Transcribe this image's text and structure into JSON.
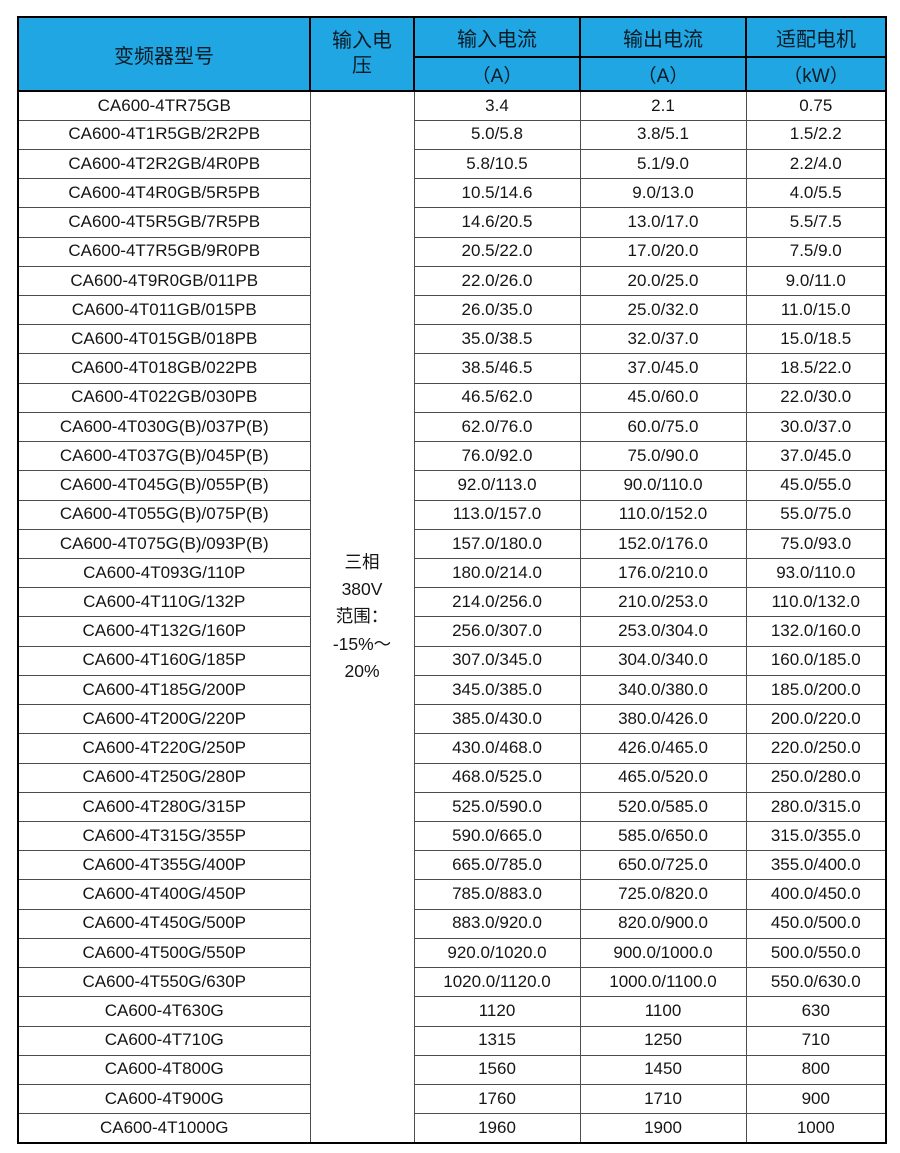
{
  "colors": {
    "header_bg": "#1FA6E3",
    "header_text": "#0d1b24",
    "body_text": "#151515",
    "outer_border": "#000000",
    "grid_line": "#4d4d4d"
  },
  "header": {
    "model": "变频器型号",
    "voltage": "输入电压",
    "input_current": "输入电流",
    "output_current": "输出电流",
    "motor": "适配电机",
    "input_current_unit": "（A）",
    "output_current_unit": "（A）",
    "motor_unit": "（kW）"
  },
  "voltage_note": "三相\n380V\n范围：\n-15%～\n20%",
  "rows": [
    {
      "model": "CA600-4TR75GB",
      "input_current": "3.4",
      "output_current": "2.1",
      "motor_kw": "0.75"
    },
    {
      "model": "CA600-4T1R5GB/2R2PB",
      "input_current": "5.0/5.8",
      "output_current": "3.8/5.1",
      "motor_kw": "1.5/2.2"
    },
    {
      "model": "CA600-4T2R2GB/4R0PB",
      "input_current": "5.8/10.5",
      "output_current": "5.1/9.0",
      "motor_kw": "2.2/4.0"
    },
    {
      "model": "CA600-4T4R0GB/5R5PB",
      "input_current": "10.5/14.6",
      "output_current": "9.0/13.0",
      "motor_kw": "4.0/5.5"
    },
    {
      "model": "CA600-4T5R5GB/7R5PB",
      "input_current": "14.6/20.5",
      "output_current": "13.0/17.0",
      "motor_kw": "5.5/7.5"
    },
    {
      "model": "CA600-4T7R5GB/9R0PB",
      "input_current": "20.5/22.0",
      "output_current": "17.0/20.0",
      "motor_kw": "7.5/9.0"
    },
    {
      "model": "CA600-4T9R0GB/011PB",
      "input_current": "22.0/26.0",
      "output_current": "20.0/25.0",
      "motor_kw": "9.0/11.0"
    },
    {
      "model": "CA600-4T011GB/015PB",
      "input_current": "26.0/35.0",
      "output_current": "25.0/32.0",
      "motor_kw": "11.0/15.0"
    },
    {
      "model": "CA600-4T015GB/018PB",
      "input_current": "35.0/38.5",
      "output_current": "32.0/37.0",
      "motor_kw": "15.0/18.5"
    },
    {
      "model": "CA600-4T018GB/022PB",
      "input_current": "38.5/46.5",
      "output_current": "37.0/45.0",
      "motor_kw": "18.5/22.0"
    },
    {
      "model": "CA600-4T022GB/030PB",
      "input_current": "46.5/62.0",
      "output_current": "45.0/60.0",
      "motor_kw": "22.0/30.0"
    },
    {
      "model": "CA600-4T030G(B)/037P(B)",
      "input_current": "62.0/76.0",
      "output_current": "60.0/75.0",
      "motor_kw": "30.0/37.0"
    },
    {
      "model": "CA600-4T037G(B)/045P(B)",
      "input_current": "76.0/92.0",
      "output_current": "75.0/90.0",
      "motor_kw": "37.0/45.0"
    },
    {
      "model": "CA600-4T045G(B)/055P(B)",
      "input_current": "92.0/113.0",
      "output_current": "90.0/110.0",
      "motor_kw": "45.0/55.0"
    },
    {
      "model": "CA600-4T055G(B)/075P(B)",
      "input_current": "113.0/157.0",
      "output_current": "110.0/152.0",
      "motor_kw": "55.0/75.0"
    },
    {
      "model": "CA600-4T075G(B)/093P(B)",
      "input_current": "157.0/180.0",
      "output_current": "152.0/176.0",
      "motor_kw": "75.0/93.0"
    },
    {
      "model": "CA600-4T093G/110P",
      "input_current": "180.0/214.0",
      "output_current": "176.0/210.0",
      "motor_kw": "93.0/110.0"
    },
    {
      "model": "CA600-4T110G/132P",
      "input_current": "214.0/256.0",
      "output_current": "210.0/253.0",
      "motor_kw": "110.0/132.0"
    },
    {
      "model": "CA600-4T132G/160P",
      "input_current": "256.0/307.0",
      "output_current": "253.0/304.0",
      "motor_kw": "132.0/160.0"
    },
    {
      "model": "CA600-4T160G/185P",
      "input_current": "307.0/345.0",
      "output_current": "304.0/340.0",
      "motor_kw": "160.0/185.0"
    },
    {
      "model": "CA600-4T185G/200P",
      "input_current": "345.0/385.0",
      "output_current": "340.0/380.0",
      "motor_kw": "185.0/200.0"
    },
    {
      "model": "CA600-4T200G/220P",
      "input_current": "385.0/430.0",
      "output_current": "380.0/426.0",
      "motor_kw": "200.0/220.0"
    },
    {
      "model": "CA600-4T220G/250P",
      "input_current": "430.0/468.0",
      "output_current": "426.0/465.0",
      "motor_kw": "220.0/250.0"
    },
    {
      "model": "CA600-4T250G/280P",
      "input_current": "468.0/525.0",
      "output_current": "465.0/520.0",
      "motor_kw": "250.0/280.0"
    },
    {
      "model": "CA600-4T280G/315P",
      "input_current": "525.0/590.0",
      "output_current": "520.0/585.0",
      "motor_kw": "280.0/315.0"
    },
    {
      "model": "CA600-4T315G/355P",
      "input_current": "590.0/665.0",
      "output_current": "585.0/650.0",
      "motor_kw": "315.0/355.0"
    },
    {
      "model": "CA600-4T355G/400P",
      "input_current": "665.0/785.0",
      "output_current": "650.0/725.0",
      "motor_kw": "355.0/400.0"
    },
    {
      "model": "CA600-4T400G/450P",
      "input_current": "785.0/883.0",
      "output_current": "725.0/820.0",
      "motor_kw": "400.0/450.0"
    },
    {
      "model": "CA600-4T450G/500P",
      "input_current": "883.0/920.0",
      "output_current": "820.0/900.0",
      "motor_kw": "450.0/500.0"
    },
    {
      "model": "CA600-4T500G/550P",
      "input_current": "920.0/1020.0",
      "output_current": "900.0/1000.0",
      "motor_kw": "500.0/550.0"
    },
    {
      "model": "CA600-4T550G/630P",
      "input_current": "1020.0/1120.0",
      "output_current": "1000.0/1100.0",
      "motor_kw": "550.0/630.0"
    },
    {
      "model": "CA600-4T630G",
      "input_current": "1120",
      "output_current": "1100",
      "motor_kw": "630"
    },
    {
      "model": "CA600-4T710G",
      "input_current": "1315",
      "output_current": "1250",
      "motor_kw": "710"
    },
    {
      "model": "CA600-4T800G",
      "input_current": "1560",
      "output_current": "1450",
      "motor_kw": "800"
    },
    {
      "model": "CA600-4T900G",
      "input_current": "1760",
      "output_current": "1710",
      "motor_kw": "900"
    },
    {
      "model": "CA600-4T1000G",
      "input_current": "1960",
      "output_current": "1900",
      "motor_kw": "1000"
    }
  ]
}
